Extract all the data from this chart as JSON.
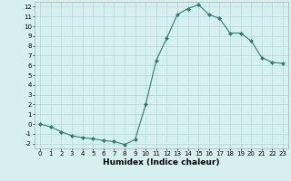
{
  "xlabel": "Humidex (Indice chaleur)",
  "ylabel": "",
  "x": [
    0,
    1,
    2,
    3,
    4,
    5,
    6,
    7,
    8,
    9,
    10,
    11,
    12,
    13,
    14,
    15,
    16,
    17,
    18,
    19,
    20,
    21,
    22,
    23
  ],
  "y": [
    0,
    -0.3,
    -0.8,
    -1.2,
    -1.4,
    -1.5,
    -1.7,
    -1.8,
    -2.1,
    -1.6,
    2.0,
    6.5,
    8.8,
    11.2,
    11.8,
    12.2,
    11.2,
    10.8,
    9.3,
    9.3,
    8.5,
    6.8,
    6.3,
    6.2
  ],
  "line_color": "#2d7d6e",
  "marker": "D",
  "marker_size": 2.0,
  "bg_color": "#d6f0ef",
  "grid_color": "#b0d8d6",
  "ylim": [
    -2.5,
    12.5
  ],
  "xlim": [
    -0.5,
    23.5
  ],
  "yticks": [
    -2,
    -1,
    0,
    1,
    2,
    3,
    4,
    5,
    6,
    7,
    8,
    9,
    10,
    11,
    12
  ],
  "xticks": [
    0,
    1,
    2,
    3,
    4,
    5,
    6,
    7,
    8,
    9,
    10,
    11,
    12,
    13,
    14,
    15,
    16,
    17,
    18,
    19,
    20,
    21,
    22,
    23
  ],
  "xlabel_fontsize": 6.5,
  "tick_fontsize": 5.0
}
